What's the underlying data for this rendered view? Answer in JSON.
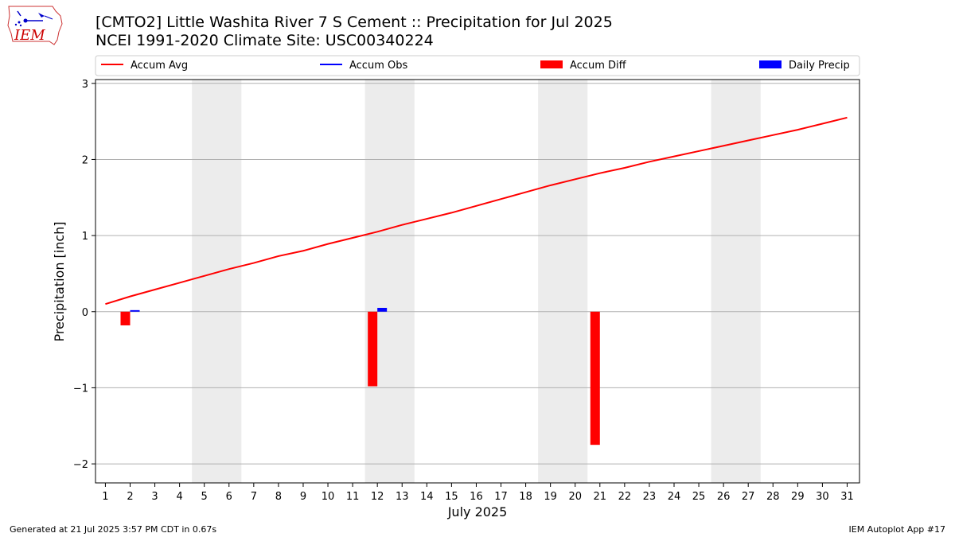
{
  "logo": {
    "text": "IEM"
  },
  "title": {
    "line1": "[CMTO2] Little Washita River 7 S Cement :: Precipitation for Jul 2025",
    "line2": "NCEI 1991-2020 Climate Site: USC00340224"
  },
  "footer": {
    "left": "Generated at 21 Jul 2025 3:57 PM CDT in 0.67s",
    "right": "IEM Autoplot App #17"
  },
  "chart_data": {
    "type": "line",
    "xlabel": "July 2025",
    "ylabel": "Precipitation [inch]",
    "xlim": [
      0.6,
      31.5
    ],
    "ylim": [
      -2.25,
      3.05
    ],
    "x_ticks": [
      1,
      2,
      3,
      4,
      5,
      6,
      7,
      8,
      9,
      10,
      11,
      12,
      13,
      14,
      15,
      16,
      17,
      18,
      19,
      20,
      21,
      22,
      23,
      24,
      25,
      26,
      27,
      28,
      29,
      30,
      31
    ],
    "y_ticks": [
      -2,
      -1,
      0,
      1,
      2,
      3
    ],
    "y_tick_labels": [
      "−2",
      "−1",
      "0",
      "1",
      "2",
      "3"
    ],
    "grid": "y",
    "weekend_shading": [
      [
        4.5,
        6.5
      ],
      [
        11.5,
        13.5
      ],
      [
        18.5,
        20.5
      ],
      [
        25.5,
        27.5
      ]
    ],
    "shading_color": "#ececec",
    "legend": {
      "placement": "top",
      "entries": [
        {
          "label": "Accum Avg",
          "kind": "line",
          "color": "#ff0000"
        },
        {
          "label": "Accum Obs",
          "kind": "line",
          "color": "#0000ff"
        },
        {
          "label": "Accum Diff",
          "kind": "bar",
          "color": "#ff0000"
        },
        {
          "label": "Daily Precip",
          "kind": "bar",
          "color": "#0000ff"
        }
      ]
    },
    "series": [
      {
        "name": "Accum Avg",
        "kind": "line",
        "color": "#ff0000",
        "x": [
          1,
          2,
          3,
          4,
          5,
          6,
          7,
          8,
          9,
          10,
          11,
          12,
          13,
          14,
          15,
          16,
          17,
          18,
          19,
          20,
          21,
          22,
          23,
          24,
          25,
          26,
          27,
          28,
          29,
          30,
          31
        ],
        "values": [
          0.1,
          0.2,
          0.29,
          0.38,
          0.47,
          0.56,
          0.64,
          0.73,
          0.8,
          0.89,
          0.97,
          1.05,
          1.14,
          1.22,
          1.3,
          1.39,
          1.48,
          1.57,
          1.66,
          1.74,
          1.82,
          1.89,
          1.97,
          2.04,
          2.11,
          2.18,
          2.25,
          2.32,
          2.39,
          2.47,
          2.55
        ]
      },
      {
        "name": "Accum Diff",
        "kind": "bar",
        "color": "#ff0000",
        "x": [
          2,
          12,
          21
        ],
        "values": [
          -0.18,
          -0.98,
          -1.75
        ]
      },
      {
        "name": "Daily Precip",
        "kind": "bar",
        "color": "#0000ff",
        "x": [
          2,
          12
        ],
        "values": [
          0.02,
          0.05
        ]
      }
    ]
  }
}
